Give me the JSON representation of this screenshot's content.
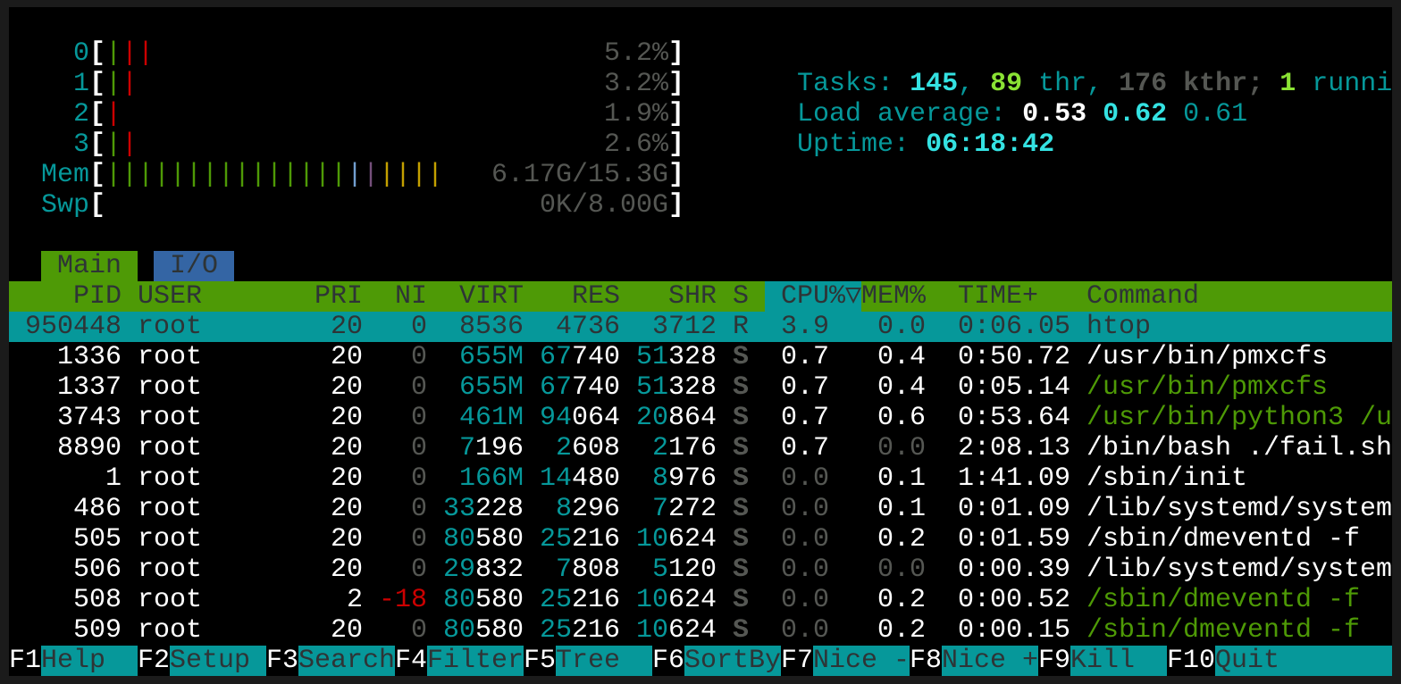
{
  "colors": {
    "green": "#4e9a06",
    "cyan": "#06989a",
    "blue": "#3465a4",
    "red": "#cc0000",
    "magenta": "#75507b",
    "yellow": "#c4a000",
    "lightblue": "#729fcf",
    "gray": "#555753"
  },
  "meters": {
    "cpus": [
      {
        "label": "0",
        "bars": [
          "green",
          "red",
          "red"
        ],
        "value": "5.2%"
      },
      {
        "label": "1",
        "bars": [
          "green",
          "red"
        ],
        "value": "3.2%"
      },
      {
        "label": "2",
        "bars": [
          "red"
        ],
        "value": "1.9%"
      },
      {
        "label": "3",
        "bars": [
          "green",
          "red"
        ],
        "value": "2.6%"
      }
    ],
    "mem": {
      "label": "Mem",
      "bars": [
        "green",
        "green",
        "green",
        "green",
        "green",
        "green",
        "green",
        "green",
        "green",
        "green",
        "green",
        "green",
        "green",
        "green",
        "green",
        "lightblue",
        "magenta",
        "yellow",
        "yellow",
        "yellow",
        "yellow"
      ],
      "value": "6.17G/15.3G"
    },
    "swp": {
      "label": "Swp",
      "bars": [],
      "value": "0K/8.00G"
    }
  },
  "stats": {
    "tasks_label": "Tasks: ",
    "tasks": "145",
    "sep1": ", ",
    "threads": "89",
    "thr_label": " thr, ",
    "kthreads": "176",
    "kthr_label": " kthr; ",
    "running": "1",
    "running_label": " running",
    "load_label": "Load average: ",
    "load1": "0.53",
    "load5": "0.62",
    "load15": "0.61",
    "uptime_label": "Uptime: ",
    "uptime": "06:18:42"
  },
  "tabs": [
    {
      "label": "Main",
      "active": true
    },
    {
      "label": "I/O",
      "active": false
    }
  ],
  "columns": {
    "pid": "PID",
    "user": "USER",
    "pri": "PRI",
    "ni": "NI",
    "virt": "VIRT",
    "res": "RES",
    "shr": "SHR",
    "s": "S",
    "cpu": "CPU%",
    "sort_icon": "▽",
    "mem": "MEM%",
    "time": "TIME+",
    "command": "Command"
  },
  "sort_column": "cpu",
  "processes": [
    {
      "pid": "950448",
      "user": "root",
      "pri": "20",
      "ni": "0",
      "virt": "8536",
      "res": "4736",
      "shr": "3712",
      "s": "R",
      "cpu": "3.9",
      "mem": "0.0",
      "time": "0:06.05",
      "command": "htop",
      "selected": true,
      "thread": false
    },
    {
      "pid": "1336",
      "user": "root",
      "pri": "20",
      "ni": "0",
      "virt": "655M",
      "res": "67740",
      "shr": "51328",
      "s": "S",
      "cpu": "0.7",
      "mem": "0.4",
      "time": "0:50.72",
      "command": "/usr/bin/pmxcfs",
      "thread": false
    },
    {
      "pid": "1337",
      "user": "root",
      "pri": "20",
      "ni": "0",
      "virt": "655M",
      "res": "67740",
      "shr": "51328",
      "s": "S",
      "cpu": "0.7",
      "mem": "0.4",
      "time": "0:05.14",
      "command": "/usr/bin/pmxcfs",
      "thread": true
    },
    {
      "pid": "3743",
      "user": "root",
      "pri": "20",
      "ni": "0",
      "virt": "461M",
      "res": "94064",
      "shr": "20864",
      "s": "S",
      "cpu": "0.7",
      "mem": "0.6",
      "time": "0:53.64",
      "command": "/usr/bin/python3 /u",
      "thread": true
    },
    {
      "pid": "8890",
      "user": "root",
      "pri": "20",
      "ni": "0",
      "virt": "7196",
      "res": "2608",
      "shr": "2176",
      "s": "S",
      "cpu": "0.7",
      "mem": "0.0",
      "time": "2:08.13",
      "command": "/bin/bash ./fail.sh",
      "thread": false
    },
    {
      "pid": "1",
      "user": "root",
      "pri": "20",
      "ni": "0",
      "virt": "166M",
      "res": "14480",
      "shr": "8976",
      "s": "S",
      "cpu": "0.0",
      "mem": "0.1",
      "time": "1:41.09",
      "command": "/sbin/init",
      "thread": false
    },
    {
      "pid": "486",
      "user": "root",
      "pri": "20",
      "ni": "0",
      "virt": "33228",
      "res": "8296",
      "shr": "7272",
      "s": "S",
      "cpu": "0.0",
      "mem": "0.1",
      "time": "0:01.09",
      "command": "/lib/systemd/system",
      "thread": false
    },
    {
      "pid": "505",
      "user": "root",
      "pri": "20",
      "ni": "0",
      "virt": "80580",
      "res": "25216",
      "shr": "10624",
      "s": "S",
      "cpu": "0.0",
      "mem": "0.2",
      "time": "0:01.59",
      "command": "/sbin/dmeventd -f",
      "thread": false
    },
    {
      "pid": "506",
      "user": "root",
      "pri": "20",
      "ni": "0",
      "virt": "29832",
      "res": "7808",
      "shr": "5120",
      "s": "S",
      "cpu": "0.0",
      "mem": "0.0",
      "time": "0:00.39",
      "command": "/lib/systemd/system",
      "thread": false
    },
    {
      "pid": "508",
      "user": "root",
      "pri": "2",
      "ni": "-18",
      "virt": "80580",
      "res": "25216",
      "shr": "10624",
      "s": "S",
      "cpu": "0.0",
      "mem": "0.2",
      "time": "0:00.52",
      "command": "/sbin/dmeventd -f",
      "thread": true
    },
    {
      "pid": "509",
      "user": "root",
      "pri": "20",
      "ni": "0",
      "virt": "80580",
      "res": "25216",
      "shr": "10624",
      "s": "S",
      "cpu": "0.0",
      "mem": "0.2",
      "time": "0:00.15",
      "command": "/sbin/dmeventd -f",
      "thread": true
    }
  ],
  "footer": [
    {
      "key": "F1",
      "label": "Help"
    },
    {
      "key": "F2",
      "label": "Setup"
    },
    {
      "key": "F3",
      "label": "Search"
    },
    {
      "key": "F4",
      "label": "Filter"
    },
    {
      "key": "F5",
      "label": "Tree"
    },
    {
      "key": "F6",
      "label": "SortBy"
    },
    {
      "key": "F7",
      "label": "Nice -"
    },
    {
      "key": "F8",
      "label": "Nice +"
    },
    {
      "key": "F9",
      "label": "Kill"
    },
    {
      "key": "F10",
      "label": "Quit"
    }
  ]
}
